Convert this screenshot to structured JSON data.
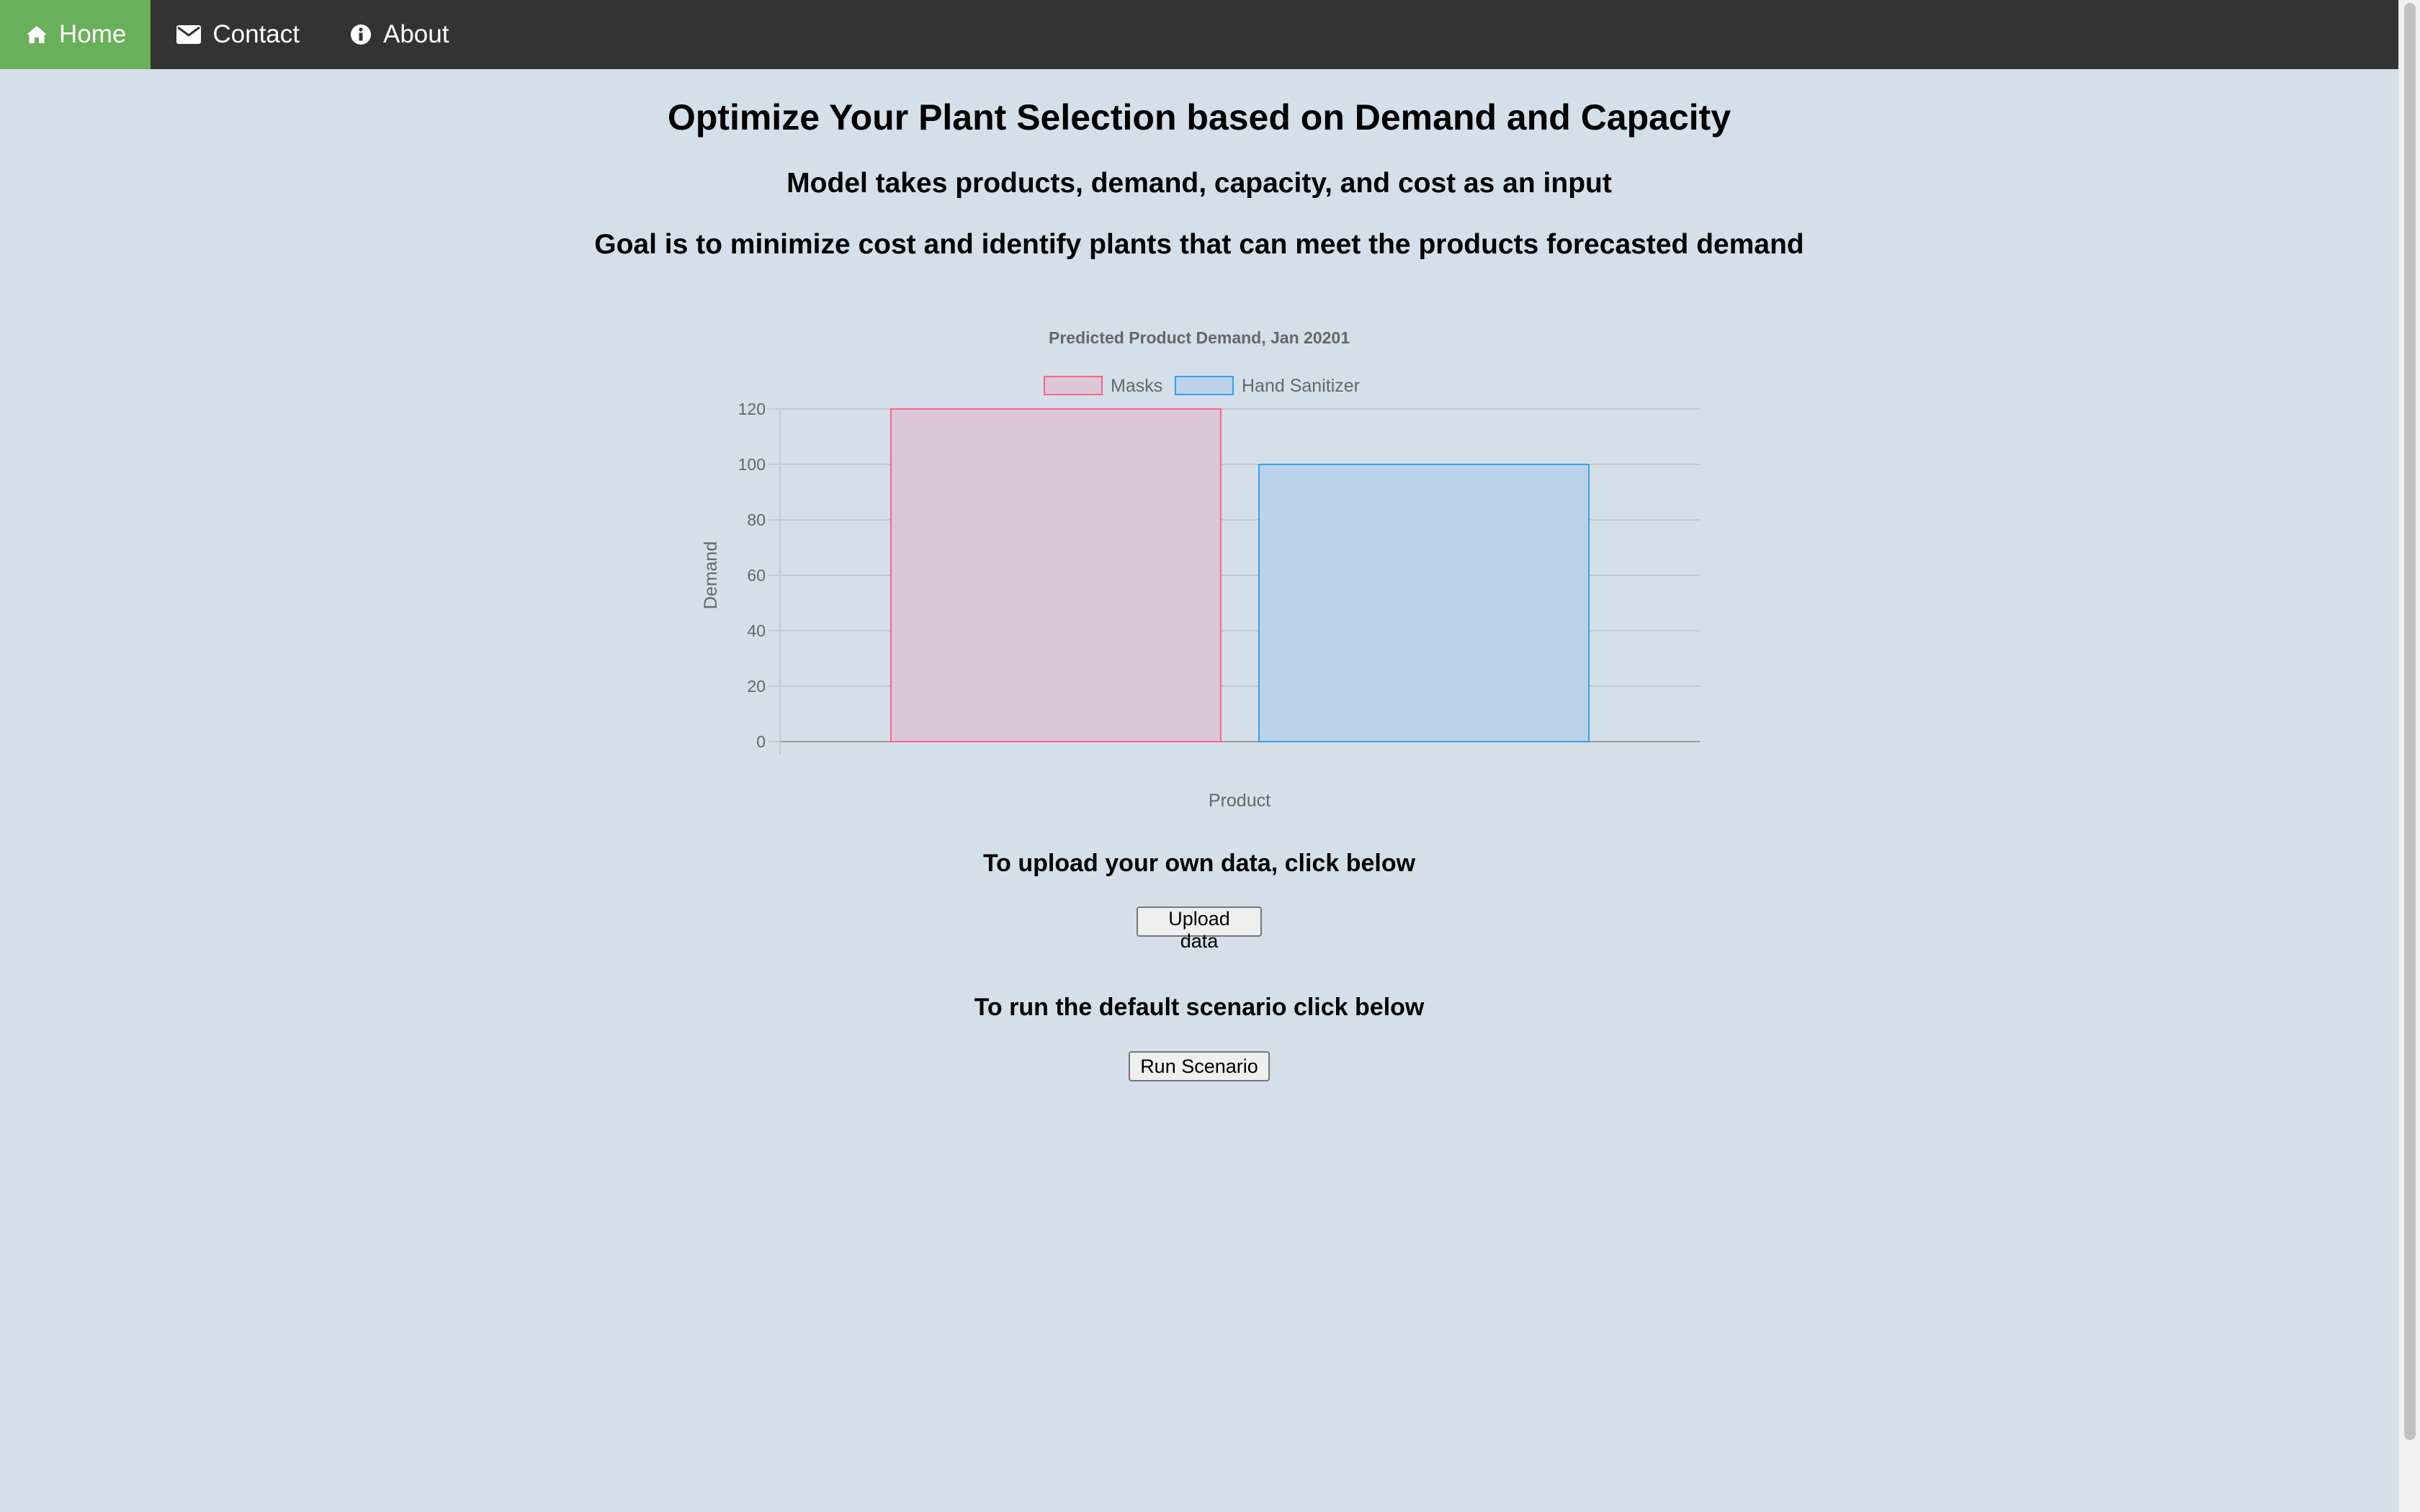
{
  "nav": {
    "items": [
      {
        "label": "Home",
        "icon": "home-icon",
        "active": true
      },
      {
        "label": "Contact",
        "icon": "envelope-icon",
        "active": false
      },
      {
        "label": "About",
        "icon": "info-icon",
        "active": false
      }
    ]
  },
  "headings": {
    "title": "Optimize Your Plant Selection based on Demand and Capacity",
    "subtitle": "Model takes products, demand, capacity, and cost as an input",
    "goal": "Goal is to minimize cost and identify plants that can meet the products forecasted demand"
  },
  "chart_data": {
    "type": "bar",
    "title": "Predicted Product Demand, Jan 20201",
    "xlabel": "Product",
    "ylabel": "Demand",
    "ylim": [
      0,
      120
    ],
    "yticks": [
      0,
      20,
      40,
      60,
      80,
      100,
      120
    ],
    "grid": true,
    "legend_position": "top",
    "series": [
      {
        "name": "Masks",
        "value": 120,
        "fill": "#dcc7d8",
        "stroke": "#ff6384"
      },
      {
        "name": "Hand Sanitizer",
        "value": 100,
        "fill": "#bcd2e8",
        "stroke": "#36a2eb"
      }
    ]
  },
  "upload": {
    "label": "To upload your own data, click below",
    "button": "Upload data"
  },
  "scenario": {
    "label": "To run the default scenario click below",
    "button": "Run Scenario"
  },
  "colors": {
    "nav_bg": "#333333",
    "nav_active": "#69b05a",
    "page_bg": "#d5dfea"
  }
}
